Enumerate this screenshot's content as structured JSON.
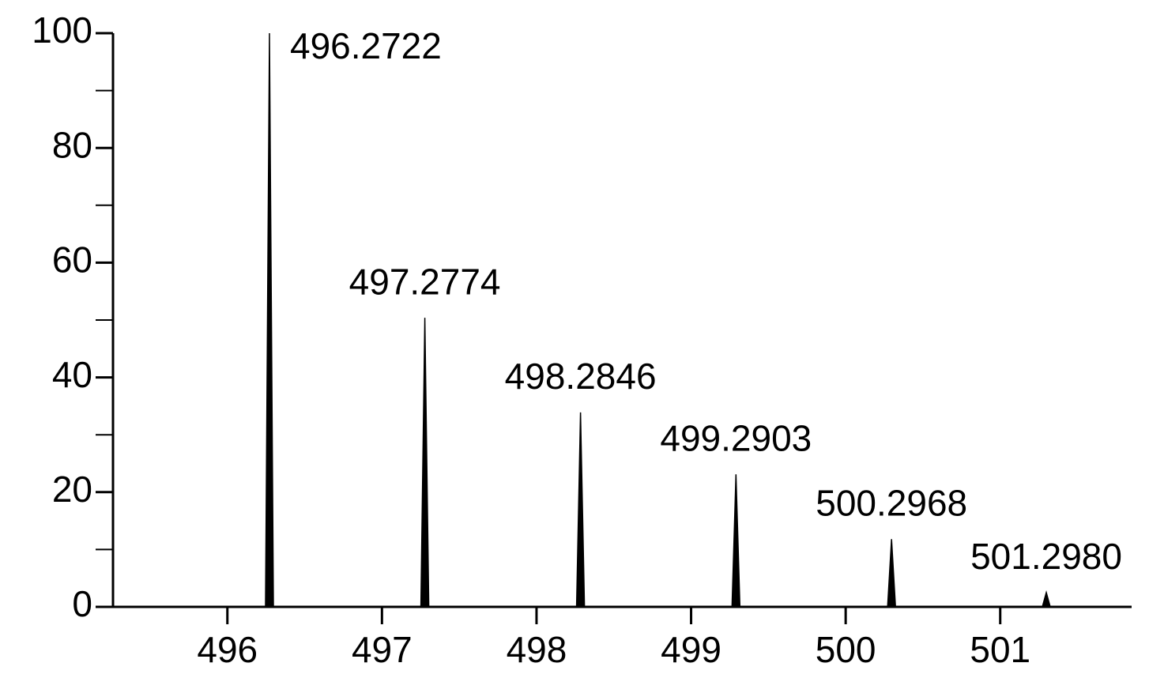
{
  "chart_data": {
    "type": "spectrum",
    "x": [
      496.2722,
      497.2774,
      498.2846,
      499.2903,
      500.2968,
      501.298
    ],
    "x_labels": [
      "496.2722",
      "497.2774",
      "498.2846",
      "499.2903",
      "500.2968",
      "501.2980"
    ],
    "values": [
      100,
      50.4,
      33.9,
      23.1,
      11.8,
      2.5
    ],
    "color": "#000000",
    "xlim": [
      495.26,
      501.85
    ],
    "xticks": [
      496,
      497,
      498,
      499,
      500,
      501
    ],
    "ylim": [
      0,
      100
    ],
    "yticks": [
      0,
      20,
      40,
      60,
      80,
      100
    ],
    "yminorticks": [
      10,
      30,
      50,
      70,
      90
    ]
  }
}
